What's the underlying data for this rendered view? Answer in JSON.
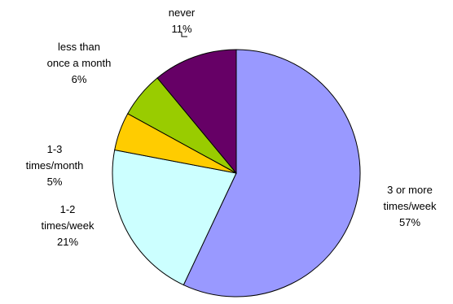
{
  "chart_data": {
    "type": "pie",
    "title": "",
    "start_angle_deg": 0,
    "direction": "clockwise",
    "legend": "none",
    "slices": [
      {
        "label_lines": [
          "3 or more",
          "times/week"
        ],
        "value": 57,
        "value_label": "57%",
        "color": "#9999ff"
      },
      {
        "label_lines": [
          "1-2",
          "times/week"
        ],
        "value": 21,
        "value_label": "21%",
        "color": "#ccffff"
      },
      {
        "label_lines": [
          "1-3",
          "times/month"
        ],
        "value": 5,
        "value_label": "5%",
        "color": "#ffcc00"
      },
      {
        "label_lines": [
          "less than",
          "once a month"
        ],
        "value": 6,
        "value_label": "6%",
        "color": "#99cc00"
      },
      {
        "label_lines": [
          "never"
        ],
        "value": 11,
        "value_label": "11%",
        "color": "#660066"
      }
    ]
  }
}
